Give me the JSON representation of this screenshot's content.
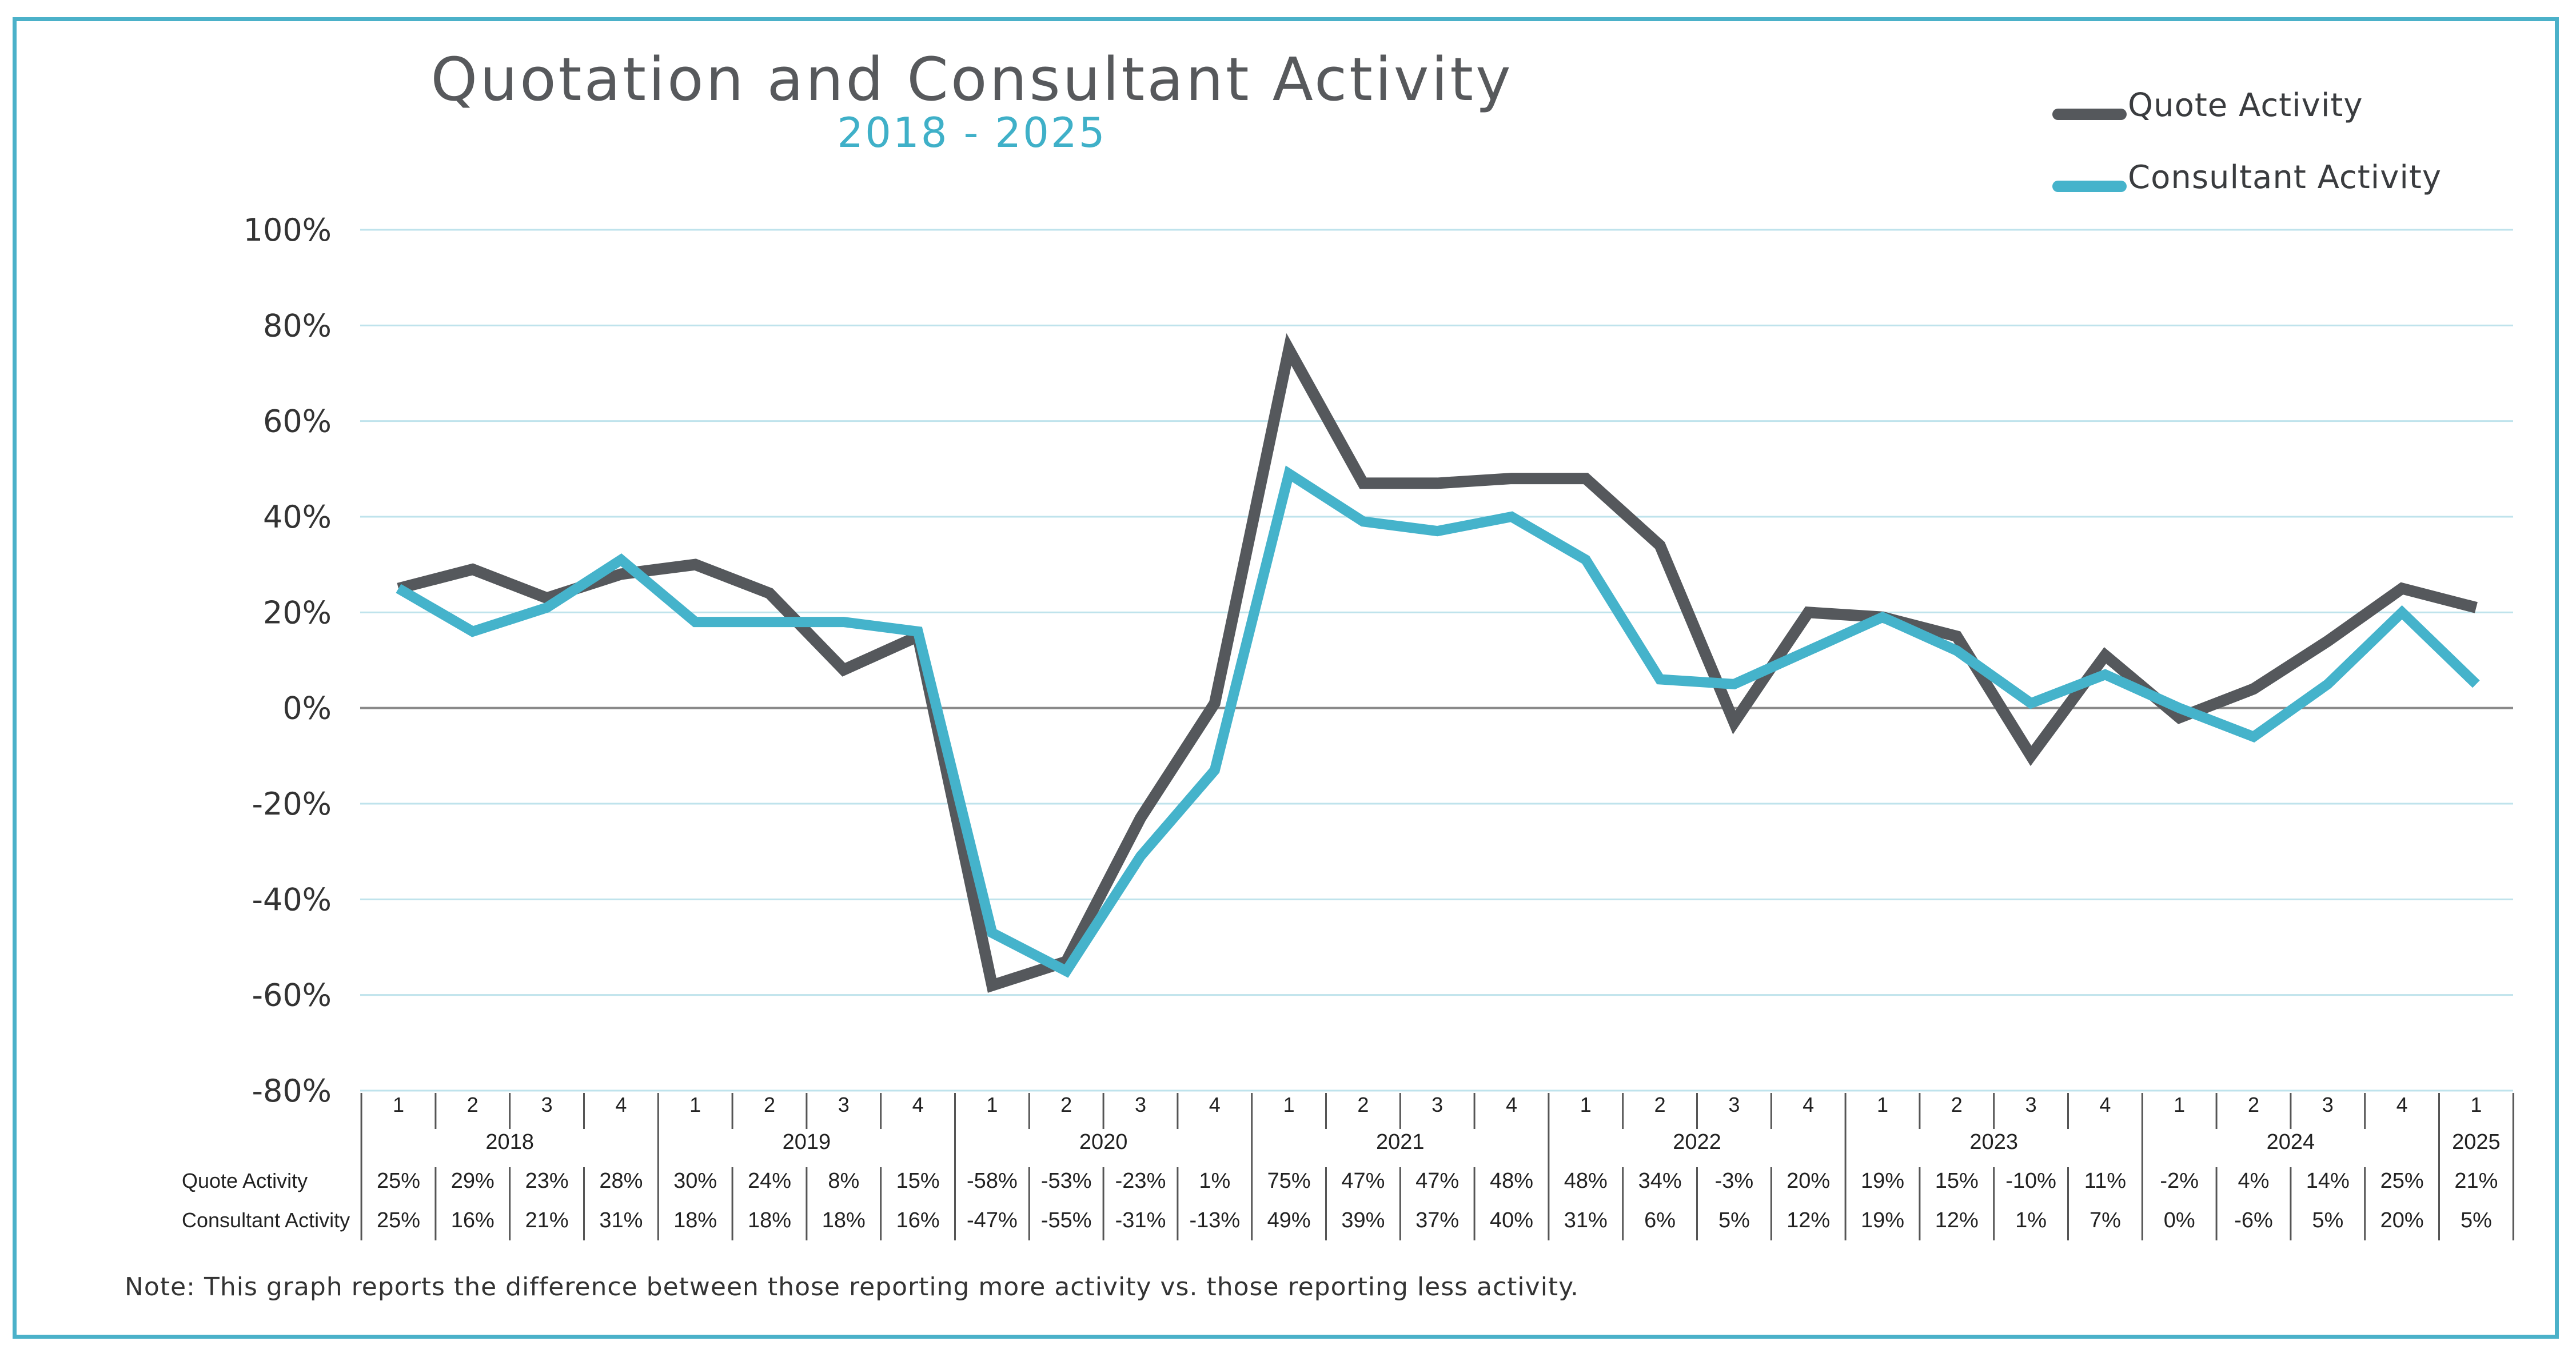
{
  "chart_data": {
    "type": "line",
    "title": "Quotation and Consultant Activity",
    "subtitle": "2018 - 2025",
    "ylim": [
      -80,
      100
    ],
    "yticks": [
      "100%",
      "80%",
      "60%",
      "40%",
      "20%",
      "0%",
      "-20%",
      "-40%",
      "-60%",
      "-80%"
    ],
    "ytick_values": [
      100,
      80,
      60,
      40,
      20,
      0,
      -20,
      -40,
      -60,
      -80
    ],
    "quarters": [
      "1",
      "2",
      "3",
      "4",
      "1",
      "2",
      "3",
      "4",
      "1",
      "2",
      "3",
      "4",
      "1",
      "2",
      "3",
      "4",
      "1",
      "2",
      "3",
      "4",
      "1",
      "2",
      "3",
      "4",
      "1",
      "2",
      "3",
      "4",
      "1"
    ],
    "years": [
      {
        "label": "2018",
        "quarters": 4
      },
      {
        "label": "2019",
        "quarters": 4
      },
      {
        "label": "2020",
        "quarters": 4
      },
      {
        "label": "2021",
        "quarters": 4
      },
      {
        "label": "2022",
        "quarters": 4
      },
      {
        "label": "2023",
        "quarters": 4
      },
      {
        "label": "2024",
        "quarters": 4
      },
      {
        "label": "2025",
        "quarters": 1
      }
    ],
    "series": [
      {
        "name": "Quote Activity",
        "color": "#55585c",
        "values": [
          25,
          29,
          23,
          28,
          30,
          24,
          8,
          15,
          -58,
          -53,
          -23,
          1,
          75,
          47,
          47,
          48,
          48,
          34,
          -3,
          20,
          19,
          15,
          -10,
          11,
          -2,
          4,
          14,
          25,
          21
        ],
        "labels": [
          "25%",
          "29%",
          "23%",
          "28%",
          "30%",
          "24%",
          "8%",
          "15%",
          "-58%",
          "-53%",
          "-23%",
          "1%",
          "75%",
          "47%",
          "47%",
          "48%",
          "48%",
          "34%",
          "-3%",
          "20%",
          "19%",
          "15%",
          "-10%",
          "11%",
          "-2%",
          "4%",
          "14%",
          "25%",
          "21%"
        ]
      },
      {
        "name": "Consultant Activity",
        "color": "#45b3cb",
        "values": [
          25,
          16,
          21,
          31,
          18,
          18,
          18,
          16,
          -47,
          -55,
          -31,
          -13,
          49,
          39,
          37,
          40,
          31,
          6,
          5,
          12,
          19,
          12,
          1,
          7,
          0,
          -6,
          5,
          20,
          5
        ],
        "labels": [
          "25%",
          "16%",
          "21%",
          "31%",
          "18%",
          "18%",
          "18%",
          "16%",
          "-47%",
          "-55%",
          "-31%",
          "-13%",
          "49%",
          "39%",
          "37%",
          "40%",
          "31%",
          "6%",
          "5%",
          "12%",
          "19%",
          "12%",
          "1%",
          "7%",
          "0%",
          "-6%",
          "5%",
          "20%",
          "5%"
        ]
      }
    ]
  },
  "legend": {
    "quote_label": "Quote Activity",
    "consultant_label": "Consultant Activity"
  },
  "note": "Note: This graph reports the difference between those reporting more activity vs. those reporting less activity."
}
